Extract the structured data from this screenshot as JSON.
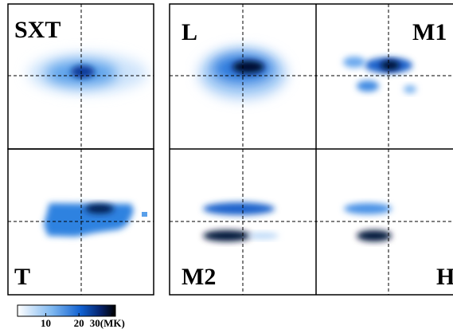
{
  "panels": {
    "sxt": "SXT",
    "t": "T",
    "l": "L",
    "m1": "M1",
    "m2": "M2",
    "h": "H"
  },
  "colorbar": {
    "range": [
      1.5,
      31
    ],
    "ticks": [
      10,
      20,
      {
        "value": 30,
        "label": "30(MK)"
      }
    ]
  }
}
